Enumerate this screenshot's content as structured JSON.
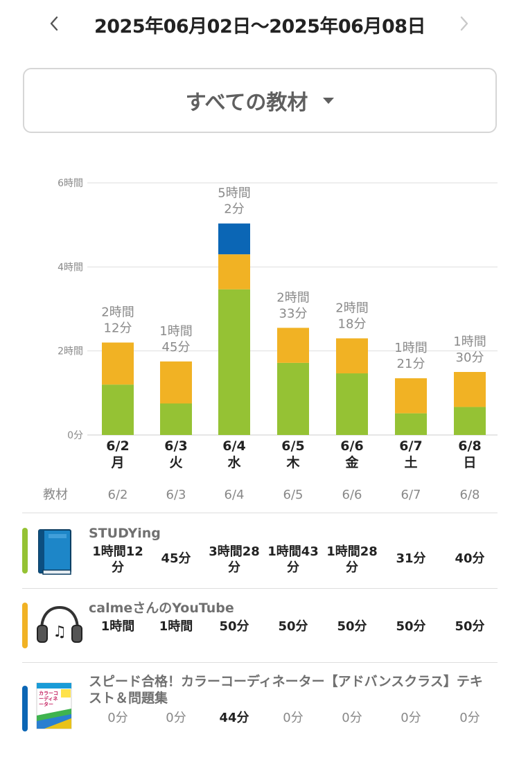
{
  "header": {
    "date_range": "2025年06月02日〜2025年06月08日",
    "prev_icon": "chevron-left-icon",
    "next_icon": "chevron-right-icon"
  },
  "material_filter": {
    "selected": "すべての教材",
    "icon": "caret-down-icon"
  },
  "chart_data": {
    "type": "bar",
    "stacked": true,
    "categories": [
      "6/2",
      "6/3",
      "6/4",
      "6/5",
      "6/6",
      "6/7",
      "6/8"
    ],
    "weekdays": [
      "月",
      "火",
      "水",
      "木",
      "金",
      "土",
      "日"
    ],
    "unit": "minutes",
    "ylim": [
      0,
      360
    ],
    "y_ticks": [
      {
        "value": 0,
        "label": "0分"
      },
      {
        "value": 120,
        "label": "2時間"
      },
      {
        "value": 240,
        "label": "4時間"
      },
      {
        "value": 360,
        "label": "6時間"
      }
    ],
    "grid": true,
    "series": [
      {
        "name": "STUDYing",
        "color": "#95c234",
        "values": [
          72,
          45,
          208,
          103,
          88,
          31,
          40
        ]
      },
      {
        "name": "calmeさんのYouTube",
        "color": "#f1b224",
        "values": [
          60,
          60,
          50,
          50,
          50,
          50,
          50
        ]
      },
      {
        "name": "スピード合格！カラーコーディネーター【アドバンスクラス】テキスト＆問題集",
        "color": "#0b66b5",
        "values": [
          0,
          0,
          44,
          0,
          0,
          0,
          0
        ]
      }
    ],
    "totals": [
      [
        "2時間",
        "12分"
      ],
      [
        "1時間",
        "45分"
      ],
      [
        "5時間",
        "2分"
      ],
      [
        "2時間",
        "33分"
      ],
      [
        "2時間",
        "18分"
      ],
      [
        "1時間",
        "21分"
      ],
      [
        "1時間",
        "30分"
      ]
    ]
  },
  "table": {
    "header_label": "教材",
    "dates": [
      "6/2",
      "6/3",
      "6/4",
      "6/5",
      "6/6",
      "6/7",
      "6/8"
    ],
    "rows": [
      {
        "title": "STUDYing",
        "color": "#95c234",
        "icon": "book-icon",
        "values": [
          [
            "1時間12",
            "分"
          ],
          [
            "45分"
          ],
          [
            "3時間28",
            "分"
          ],
          [
            "1時間43",
            "分"
          ],
          [
            "1時間28",
            "分"
          ],
          [
            "31分"
          ],
          [
            "40分"
          ]
        ]
      },
      {
        "title": "calmeさんのYouTube",
        "color": "#f1b224",
        "icon": "headphones-icon",
        "values": [
          [
            "1時間"
          ],
          [
            "1時間"
          ],
          [
            "50分"
          ],
          [
            "50分"
          ],
          [
            "50分"
          ],
          [
            "50分"
          ],
          [
            "50分"
          ]
        ]
      },
      {
        "title": "スピード合格！カラーコーディネーター【アドバンスクラス】テキスト＆問題集",
        "color": "#0b66b5",
        "icon": "textbook-cover-icon",
        "cover_text": "カラーコーディネーター",
        "values": [
          [
            "0分"
          ],
          [
            "0分"
          ],
          [
            "44分"
          ],
          [
            "0分"
          ],
          [
            "0分"
          ],
          [
            "0分"
          ],
          [
            "0分"
          ]
        ]
      }
    ]
  }
}
